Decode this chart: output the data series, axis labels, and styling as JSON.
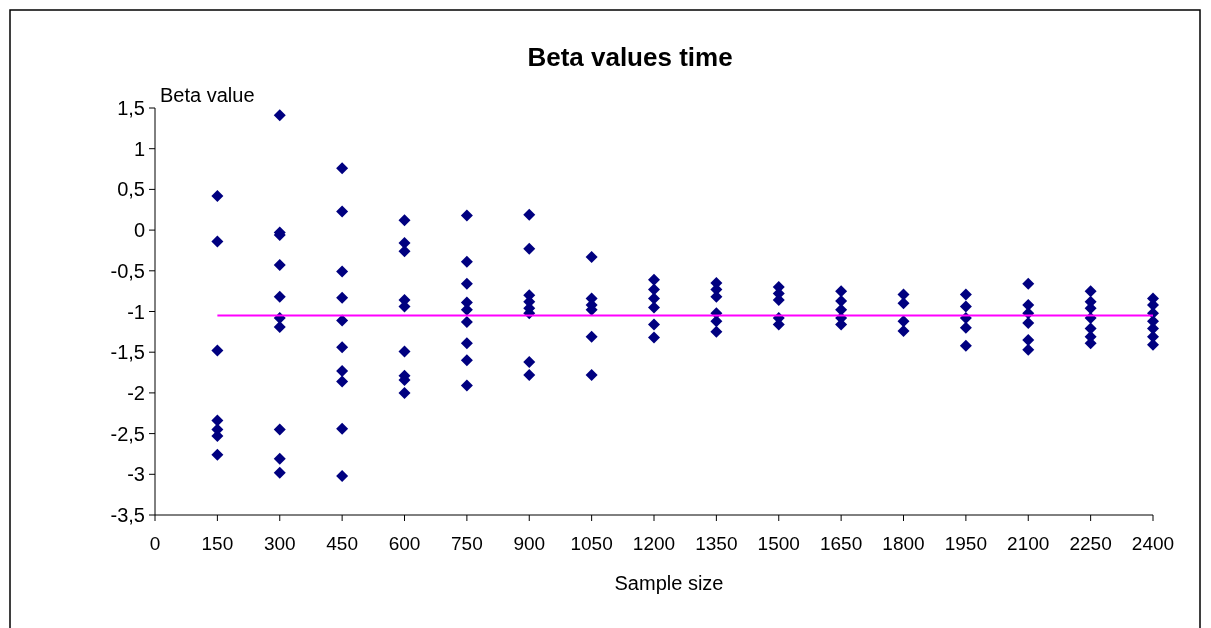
{
  "chart_data": {
    "type": "scatter",
    "title": "Beta values time",
    "xlabel": "Sample size",
    "ylabel": "Beta value",
    "marker": "diamond",
    "grid": false,
    "xlim": [
      0,
      2400
    ],
    "xticks": [
      0,
      150,
      300,
      450,
      600,
      750,
      900,
      1050,
      1200,
      1350,
      1500,
      1650,
      1800,
      1950,
      2100,
      2250,
      2400
    ],
    "ylim": [
      -3.5,
      1.5
    ],
    "yticks": [
      {
        "value": -3.5,
        "label": "-3,5"
      },
      -3,
      {
        "value": -2.5,
        "label": "-2,5"
      },
      -2,
      {
        "value": -1.5,
        "label": "-1,5"
      },
      -1,
      {
        "value": -0.5,
        "label": "-0,5"
      },
      0,
      {
        "value": 0.5,
        "label": "0,5"
      },
      1,
      {
        "value": 1.5,
        "label": "1,5"
      }
    ],
    "series": [
      {
        "color": "#000080",
        "x": [
          150,
          150,
          150,
          150,
          150,
          150,
          150,
          300,
          300,
          300,
          300,
          300,
          300,
          300,
          300,
          300,
          300,
          450,
          450,
          450,
          450,
          450,
          450,
          450,
          450,
          450,
          450,
          600,
          600,
          600,
          600,
          600,
          600,
          600,
          600,
          600,
          750,
          750,
          750,
          750,
          750,
          750,
          750,
          750,
          750,
          900,
          900,
          900,
          900,
          900,
          900,
          900,
          900,
          1050,
          1050,
          1050,
          1050,
          1050,
          1050,
          1200,
          1200,
          1200,
          1200,
          1200,
          1200,
          1350,
          1350,
          1350,
          1350,
          1350,
          1350,
          1500,
          1500,
          1500,
          1500,
          1500,
          1650,
          1650,
          1650,
          1650,
          1650,
          1800,
          1800,
          1800,
          1800,
          1950,
          1950,
          1950,
          1950,
          1950,
          2100,
          2100,
          2100,
          2100,
          2100,
          2100,
          2250,
          2250,
          2250,
          2250,
          2250,
          2250,
          2250,
          2400,
          2400,
          2400,
          2400,
          2400,
          2400,
          2400
        ],
        "values": [
          0.42,
          -0.14,
          -1.48,
          -2.34,
          -2.45,
          -2.53,
          -2.76,
          1.41,
          -0.03,
          -0.06,
          -0.43,
          -0.82,
          -1.08,
          -1.19,
          -2.45,
          -2.81,
          -2.98,
          0.76,
          0.23,
          -0.51,
          -0.83,
          -1.11,
          -1.44,
          -1.73,
          -1.86,
          -2.44,
          -3.02,
          0.12,
          -0.16,
          -0.26,
          -0.86,
          -0.94,
          -1.49,
          -1.79,
          -1.84,
          -2.0,
          0.18,
          -0.39,
          -0.66,
          -0.89,
          -0.98,
          -1.13,
          -1.39,
          -1.6,
          -1.91,
          0.19,
          -0.23,
          -0.8,
          -0.88,
          -0.96,
          -1.02,
          -1.62,
          -1.78,
          -0.33,
          -0.84,
          -0.92,
          -0.98,
          -1.31,
          -1.78,
          -0.61,
          -0.73,
          -0.84,
          -0.95,
          -1.16,
          -1.32,
          -0.65,
          -0.73,
          -0.82,
          -1.02,
          -1.12,
          -1.25,
          -0.7,
          -0.78,
          -0.86,
          -1.08,
          -1.16,
          -0.75,
          -0.87,
          -0.98,
          -1.08,
          -1.16,
          -0.79,
          -0.9,
          -1.12,
          -1.24,
          -0.79,
          -0.94,
          -1.08,
          -1.2,
          -1.42,
          -0.66,
          -0.92,
          -1.02,
          -1.14,
          -1.35,
          -1.47,
          -0.75,
          -0.88,
          -0.96,
          -1.08,
          -1.21,
          -1.31,
          -1.39,
          -0.84,
          -0.92,
          -1.02,
          -1.12,
          -1.21,
          -1.31,
          -1.41
        ]
      },
      {
        "type": "line",
        "color": "#ff00ff",
        "x": [
          150,
          2400
        ],
        "values": [
          -1.05,
          -1.05
        ],
        "marker": "none"
      }
    ]
  }
}
